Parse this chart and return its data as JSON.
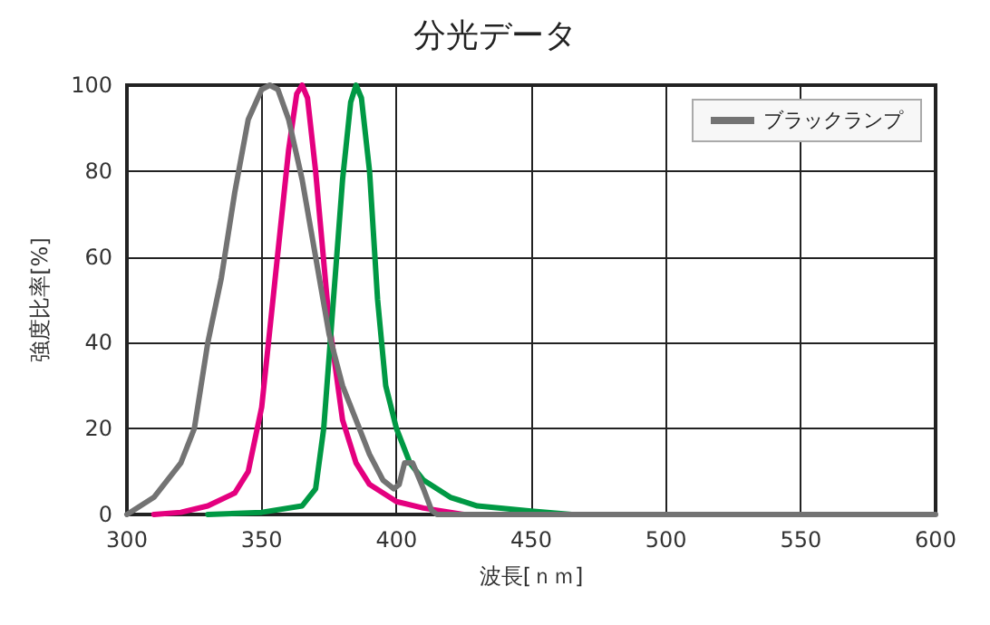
{
  "chart_data": {
    "type": "line",
    "title": "分光データ",
    "xlabel": "波長[ｎｍ]",
    "ylabel": "強度比率[%]",
    "xlim": [
      300,
      600
    ],
    "xticks": [
      300,
      350,
      400,
      450,
      500,
      550,
      600
    ],
    "ylim": [
      0,
      100
    ],
    "yticks": [
      0,
      20,
      40,
      60,
      80,
      100
    ],
    "grid": true,
    "legend": "top right",
    "marker": "none",
    "line_style": "solid",
    "series": [
      {
        "color": "#e4007f",
        "x": [
          310,
          320,
          330,
          340,
          345,
          350,
          355,
          360,
          363,
          365,
          367,
          370,
          375,
          380,
          385,
          390,
          400,
          410,
          425
        ],
        "values": [
          0,
          0.5,
          2,
          5,
          10,
          25,
          55,
          85,
          98,
          100,
          97,
          80,
          45,
          22,
          12,
          7,
          3,
          1.5,
          0
        ]
      },
      {
        "color": "#009944",
        "x": [
          330,
          350,
          365,
          370,
          373,
          376,
          380,
          383,
          385,
          387,
          390,
          393,
          396,
          400,
          405,
          410,
          420,
          430,
          450,
          465
        ],
        "values": [
          0,
          0.5,
          2,
          6,
          20,
          45,
          78,
          96,
          100,
          97,
          80,
          50,
          30,
          20,
          12,
          8,
          4,
          2,
          0.8,
          0
        ]
      },
      {
        "name": "ブラックランプ",
        "color": "#737373",
        "x": [
          300,
          310,
          320,
          325,
          330,
          335,
          340,
          345,
          350,
          353,
          356,
          360,
          365,
          370,
          375,
          380,
          385,
          390,
          395,
          399,
          401,
          403,
          406,
          410,
          413,
          415,
          600
        ],
        "values": [
          0,
          4,
          12,
          20,
          40,
          55,
          75,
          92,
          99,
          100,
          99,
          92,
          78,
          60,
          42,
          30,
          22,
          14,
          8,
          6,
          7,
          12,
          12,
          6,
          1,
          0,
          0
        ]
      }
    ]
  }
}
